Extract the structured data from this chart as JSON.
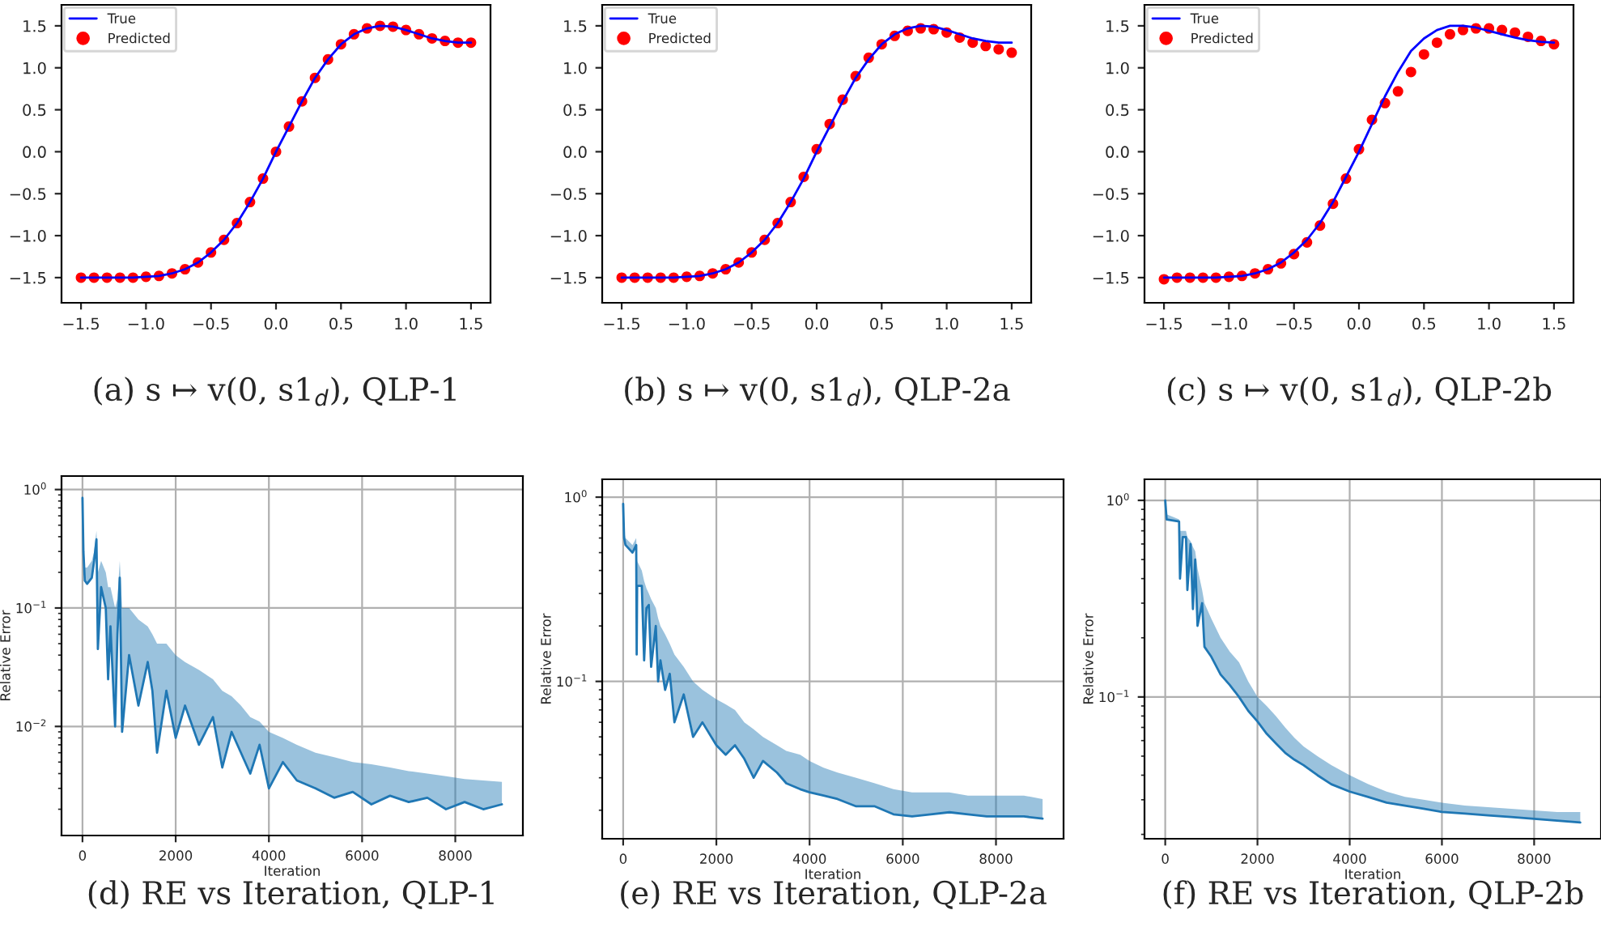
{
  "chart_data": [
    {
      "type": "line",
      "title": "(a) s ↦ v(0, s1$_{d}$), QLP-1",
      "xlim": [
        -1.65,
        1.65
      ],
      "ylim": [
        -1.8,
        1.75
      ],
      "xticks": [
        {
          "value": -1.5,
          "label": "−1.5"
        },
        {
          "value": -1.0,
          "label": "−1.0"
        },
        {
          "value": -0.5,
          "label": "−0.5"
        },
        {
          "value": 0,
          "label": "0.0"
        },
        {
          "value": 0.5,
          "label": "0.5"
        },
        {
          "value": 1,
          "label": "1.0"
        },
        {
          "value": 1.5,
          "label": "1.5"
        }
      ],
      "yticks": [
        {
          "value": -1.5,
          "label": "−1.5"
        },
        {
          "value": -1.0,
          "label": "−1.0"
        },
        {
          "value": -0.5,
          "label": "−0.5"
        },
        {
          "value": 0,
          "label": "0.0"
        },
        {
          "value": 0.5,
          "label": "0.5"
        },
        {
          "value": 1,
          "label": "1.0"
        },
        {
          "value": 1.5,
          "label": "1.5"
        }
      ],
      "grid": false,
      "legend": "top left",
      "x": [
        -1.5,
        -1.4,
        -1.3,
        -1.2,
        -1.1,
        -1.0,
        -0.9,
        -0.8,
        -0.7,
        -0.6,
        -0.5,
        -0.4,
        -0.3,
        -0.2,
        -0.1,
        0.0,
        0.1,
        0.2,
        0.3,
        0.4,
        0.5,
        0.6,
        0.7,
        0.8,
        0.9,
        1.0,
        1.1,
        1.2,
        1.3,
        1.4,
        1.5
      ],
      "series": [
        {
          "name": "True",
          "type": "line",
          "color": "#0000ff",
          "values": [
            -1.5,
            -1.5,
            -1.5,
            -1.5,
            -1.5,
            -1.49,
            -1.48,
            -1.45,
            -1.4,
            -1.32,
            -1.2,
            -1.05,
            -0.85,
            -0.6,
            -0.32,
            0.0,
            0.3,
            0.6,
            0.88,
            1.1,
            1.28,
            1.4,
            1.47,
            1.5,
            1.49,
            1.45,
            1.4,
            1.35,
            1.32,
            1.3,
            1.3
          ]
        },
        {
          "name": "Predicted",
          "type": "scatter",
          "color": "#ff0000",
          "values": [
            -1.5,
            -1.5,
            -1.5,
            -1.5,
            -1.5,
            -1.49,
            -1.48,
            -1.45,
            -1.4,
            -1.32,
            -1.2,
            -1.05,
            -0.85,
            -0.6,
            -0.32,
            0.0,
            0.3,
            0.6,
            0.88,
            1.1,
            1.28,
            1.4,
            1.47,
            1.5,
            1.49,
            1.45,
            1.4,
            1.35,
            1.32,
            1.3,
            1.3
          ]
        }
      ]
    },
    {
      "type": "line",
      "title": "(b) s ↦ v(0, s1$_{d}$), QLP-2a",
      "xlim": [
        -1.65,
        1.65
      ],
      "ylim": [
        -1.8,
        1.75
      ],
      "xticks": [
        {
          "value": -1.5,
          "label": "−1.5"
        },
        {
          "value": -1.0,
          "label": "−1.0"
        },
        {
          "value": -0.5,
          "label": "−0.5"
        },
        {
          "value": 0,
          "label": "0.0"
        },
        {
          "value": 0.5,
          "label": "0.5"
        },
        {
          "value": 1,
          "label": "1.0"
        },
        {
          "value": 1.5,
          "label": "1.5"
        }
      ],
      "yticks": [
        {
          "value": -1.5,
          "label": "−1.5"
        },
        {
          "value": -1.0,
          "label": "−1.0"
        },
        {
          "value": -0.5,
          "label": "−0.5"
        },
        {
          "value": 0,
          "label": "0.0"
        },
        {
          "value": 0.5,
          "label": "0.5"
        },
        {
          "value": 1,
          "label": "1.0"
        },
        {
          "value": 1.5,
          "label": "1.5"
        }
      ],
      "grid": false,
      "legend": "top left",
      "x": [
        -1.5,
        -1.4,
        -1.3,
        -1.2,
        -1.1,
        -1.0,
        -0.9,
        -0.8,
        -0.7,
        -0.6,
        -0.5,
        -0.4,
        -0.3,
        -0.2,
        -0.1,
        0.0,
        0.1,
        0.2,
        0.3,
        0.4,
        0.5,
        0.6,
        0.7,
        0.8,
        0.9,
        1.0,
        1.1,
        1.2,
        1.3,
        1.4,
        1.5
      ],
      "series": [
        {
          "name": "True",
          "type": "line",
          "color": "#0000ff",
          "values": [
            -1.5,
            -1.5,
            -1.5,
            -1.5,
            -1.5,
            -1.49,
            -1.48,
            -1.45,
            -1.4,
            -1.32,
            -1.2,
            -1.05,
            -0.85,
            -0.6,
            -0.32,
            0.0,
            0.3,
            0.6,
            0.88,
            1.1,
            1.28,
            1.4,
            1.47,
            1.5,
            1.49,
            1.45,
            1.4,
            1.35,
            1.32,
            1.3,
            1.3
          ]
        },
        {
          "name": "Predicted",
          "type": "scatter",
          "color": "#ff0000",
          "values": [
            -1.5,
            -1.5,
            -1.5,
            -1.5,
            -1.5,
            -1.49,
            -1.48,
            -1.45,
            -1.4,
            -1.32,
            -1.2,
            -1.05,
            -0.85,
            -0.6,
            -0.3,
            0.03,
            0.33,
            0.62,
            0.9,
            1.12,
            1.28,
            1.38,
            1.44,
            1.47,
            1.46,
            1.42,
            1.36,
            1.3,
            1.26,
            1.22,
            1.18
          ]
        }
      ]
    },
    {
      "type": "line",
      "title": "(c) s ↦ v(0, s1$_{d}$), QLP-2b",
      "xlim": [
        -1.65,
        1.65
      ],
      "ylim": [
        -1.8,
        1.75
      ],
      "xticks": [
        {
          "value": -1.5,
          "label": "−1.5"
        },
        {
          "value": -1.0,
          "label": "−1.0"
        },
        {
          "value": -0.5,
          "label": "−0.5"
        },
        {
          "value": 0,
          "label": "0.0"
        },
        {
          "value": 0.5,
          "label": "0.5"
        },
        {
          "value": 1,
          "label": "1.0"
        },
        {
          "value": 1.5,
          "label": "1.5"
        }
      ],
      "yticks": [
        {
          "value": -1.5,
          "label": "−1.5"
        },
        {
          "value": -1.0,
          "label": "−1.0"
        },
        {
          "value": -0.5,
          "label": "−0.5"
        },
        {
          "value": 0,
          "label": "0.0"
        },
        {
          "value": 0.5,
          "label": "0.5"
        },
        {
          "value": 1,
          "label": "1.0"
        },
        {
          "value": 1.5,
          "label": "1.5"
        }
      ],
      "grid": false,
      "legend": "top left",
      "x": [
        -1.5,
        -1.4,
        -1.3,
        -1.2,
        -1.1,
        -1.0,
        -0.9,
        -0.8,
        -0.7,
        -0.6,
        -0.5,
        -0.4,
        -0.3,
        -0.2,
        -0.1,
        0.0,
        0.1,
        0.2,
        0.3,
        0.4,
        0.5,
        0.6,
        0.7,
        0.8,
        0.9,
        1.0,
        1.1,
        1.2,
        1.3,
        1.4,
        1.5
      ],
      "series": [
        {
          "name": "True",
          "type": "line",
          "color": "#0000ff",
          "values": [
            -1.5,
            -1.5,
            -1.5,
            -1.5,
            -1.5,
            -1.49,
            -1.48,
            -1.45,
            -1.4,
            -1.32,
            -1.2,
            -1.05,
            -0.85,
            -0.6,
            -0.3,
            0.0,
            0.33,
            0.66,
            0.95,
            1.2,
            1.35,
            1.45,
            1.5,
            1.5,
            1.48,
            1.44,
            1.4,
            1.36,
            1.33,
            1.31,
            1.3
          ]
        },
        {
          "name": "Predicted",
          "type": "scatter",
          "color": "#ff0000",
          "values": [
            -1.52,
            -1.5,
            -1.5,
            -1.5,
            -1.5,
            -1.49,
            -1.48,
            -1.45,
            -1.4,
            -1.33,
            -1.22,
            -1.08,
            -0.88,
            -0.62,
            -0.32,
            0.03,
            0.38,
            0.58,
            0.72,
            0.95,
            1.16,
            1.3,
            1.4,
            1.45,
            1.47,
            1.47,
            1.45,
            1.42,
            1.37,
            1.32,
            1.28
          ]
        }
      ]
    },
    {
      "type": "line",
      "title": "(d) RE vs Iteration, QLP-1",
      "xlabel": "Iteration",
      "ylabel": "Relative Error",
      "log": "y",
      "grid": true,
      "xlim": [
        -450,
        9450
      ],
      "ylim": [
        0.0012,
        1.3
      ],
      "xticks": [
        0,
        2000,
        4000,
        6000,
        8000
      ],
      "yticks": [
        {
          "value": 0.01,
          "label": "10$^{−2}$"
        },
        {
          "value": 0.1,
          "label": "10$^{−1}$"
        },
        {
          "value": 1,
          "label": "10$^{0}$"
        }
      ],
      "series": [
        {
          "type": "line",
          "color": "#1f77b4",
          "x": [
            0,
            20,
            50,
            100,
            200,
            250,
            300,
            330,
            400,
            500,
            550,
            600,
            700,
            750,
            800,
            850,
            1000,
            1200,
            1400,
            1500,
            1600,
            1800,
            2000,
            2200,
            2500,
            2800,
            3000,
            3200,
            3400,
            3600,
            3800,
            4000,
            4300,
            4600,
            5000,
            5400,
            5800,
            6200,
            6600,
            7000,
            7400,
            7800,
            8200,
            8600,
            9000
          ],
          "values": [
            0.85,
            0.3,
            0.17,
            0.16,
            0.18,
            0.25,
            0.38,
            0.045,
            0.15,
            0.1,
            0.025,
            0.07,
            0.01,
            0.06,
            0.18,
            0.009,
            0.04,
            0.015,
            0.035,
            0.02,
            0.006,
            0.02,
            0.008,
            0.015,
            0.007,
            0.012,
            0.0045,
            0.009,
            0.006,
            0.004,
            0.007,
            0.003,
            0.005,
            0.0035,
            0.003,
            0.0025,
            0.0028,
            0.0022,
            0.0026,
            0.0023,
            0.0025,
            0.002,
            0.0023,
            0.002,
            0.0022
          ],
          "lower": [
            0.85,
            0.3,
            0.17,
            0.16,
            0.18,
            0.25,
            0.38,
            0.045,
            0.15,
            0.1,
            0.025,
            0.07,
            0.01,
            0.06,
            0.18,
            0.009,
            0.04,
            0.015,
            0.035,
            0.02,
            0.006,
            0.02,
            0.008,
            0.015,
            0.007,
            0.012,
            0.0045,
            0.009,
            0.006,
            0.004,
            0.007,
            0.003,
            0.005,
            0.0035,
            0.003,
            0.0025,
            0.0028,
            0.0022,
            0.0026,
            0.0023,
            0.0025,
            0.002,
            0.0023,
            0.002,
            0.0022
          ],
          "upper": [
            0.9,
            0.35,
            0.22,
            0.22,
            0.25,
            0.3,
            0.45,
            0.2,
            0.25,
            0.2,
            0.15,
            0.15,
            0.1,
            0.12,
            0.25,
            0.1,
            0.1,
            0.08,
            0.07,
            0.06,
            0.05,
            0.05,
            0.04,
            0.035,
            0.03,
            0.025,
            0.02,
            0.018,
            0.015,
            0.012,
            0.011,
            0.009,
            0.008,
            0.007,
            0.006,
            0.0055,
            0.005,
            0.0048,
            0.0045,
            0.0042,
            0.004,
            0.0038,
            0.0036,
            0.0035,
            0.0034
          ]
        }
      ]
    },
    {
      "type": "line",
      "title": "(e) RE vs Iteration, QLP-2a",
      "xlabel": "Iteration",
      "ylabel": "Relative Error",
      "log": "y",
      "grid": true,
      "xlim": [
        -450,
        9450
      ],
      "ylim": [
        0.014,
        1.25
      ],
      "xticks": [
        0,
        2000,
        4000,
        6000,
        8000
      ],
      "yticks": [
        {
          "value": 0.1,
          "label": "10$^{−1}$"
        },
        {
          "value": 1,
          "label": "10$^{0}$"
        }
      ],
      "series": [
        {
          "type": "line",
          "color": "#1f77b4",
          "x": [
            0,
            20,
            50,
            200,
            280,
            290,
            300,
            400,
            450,
            500,
            550,
            600,
            700,
            750,
            800,
            900,
            1000,
            1100,
            1300,
            1500,
            1700,
            2000,
            2200,
            2400,
            2600,
            2800,
            3000,
            3300,
            3500,
            3800,
            4000,
            4300,
            4600,
            5000,
            5400,
            5800,
            6200,
            6600,
            7000,
            7400,
            7800,
            8200,
            8600,
            9000
          ],
          "values": [
            0.92,
            0.6,
            0.55,
            0.5,
            0.55,
            0.14,
            0.33,
            0.33,
            0.13,
            0.25,
            0.26,
            0.12,
            0.2,
            0.1,
            0.13,
            0.09,
            0.11,
            0.06,
            0.085,
            0.05,
            0.06,
            0.045,
            0.04,
            0.045,
            0.038,
            0.03,
            0.037,
            0.032,
            0.028,
            0.026,
            0.025,
            0.024,
            0.023,
            0.021,
            0.021,
            0.019,
            0.0185,
            0.019,
            0.0195,
            0.019,
            0.0185,
            0.0185,
            0.0185,
            0.018
          ],
          "lower": [
            0.92,
            0.6,
            0.55,
            0.5,
            0.55,
            0.14,
            0.33,
            0.33,
            0.13,
            0.25,
            0.26,
            0.12,
            0.2,
            0.1,
            0.13,
            0.09,
            0.11,
            0.06,
            0.085,
            0.05,
            0.06,
            0.045,
            0.04,
            0.045,
            0.038,
            0.03,
            0.037,
            0.032,
            0.028,
            0.026,
            0.025,
            0.024,
            0.023,
            0.021,
            0.021,
            0.019,
            0.0185,
            0.019,
            0.0195,
            0.019,
            0.0185,
            0.0185,
            0.0185,
            0.018
          ],
          "upper": [
            0.95,
            0.65,
            0.6,
            0.55,
            0.6,
            0.5,
            0.45,
            0.4,
            0.35,
            0.32,
            0.3,
            0.28,
            0.25,
            0.22,
            0.2,
            0.18,
            0.16,
            0.14,
            0.12,
            0.1,
            0.09,
            0.08,
            0.075,
            0.07,
            0.06,
            0.055,
            0.05,
            0.045,
            0.042,
            0.04,
            0.037,
            0.034,
            0.032,
            0.03,
            0.028,
            0.026,
            0.025,
            0.025,
            0.025,
            0.024,
            0.024,
            0.024,
            0.024,
            0.023
          ]
        }
      ]
    },
    {
      "type": "line",
      "title": "(f) RE vs Iteration, QLP-2b",
      "xlabel": "Iteration",
      "ylabel": "Relative Error",
      "log": "y",
      "grid": true,
      "xlim": [
        -450,
        9450
      ],
      "ylim": [
        0.019,
        1.28
      ],
      "xticks": [
        0,
        2000,
        4000,
        6000,
        8000
      ],
      "yticks": [
        {
          "value": 0.1,
          "label": "10$^{−1}$"
        },
        {
          "value": 1,
          "label": "10$^{0}$"
        }
      ],
      "series": [
        {
          "type": "line",
          "color": "#1f77b4",
          "x": [
            0,
            30,
            300,
            320,
            380,
            450,
            480,
            550,
            600,
            650,
            700,
            800,
            850,
            1000,
            1200,
            1400,
            1600,
            1800,
            2000,
            2200,
            2400,
            2600,
            2800,
            3000,
            3300,
            3600,
            4000,
            4400,
            4800,
            5200,
            5600,
            6000,
            6500,
            7000,
            7500,
            8000,
            8500,
            9000
          ],
          "values": [
            1.0,
            0.8,
            0.78,
            0.4,
            0.65,
            0.65,
            0.35,
            0.6,
            0.28,
            0.5,
            0.23,
            0.3,
            0.18,
            0.16,
            0.13,
            0.115,
            0.1,
            0.085,
            0.075,
            0.065,
            0.058,
            0.052,
            0.048,
            0.045,
            0.04,
            0.036,
            0.033,
            0.031,
            0.029,
            0.028,
            0.027,
            0.026,
            0.0255,
            0.025,
            0.0245,
            0.024,
            0.0235,
            0.023
          ],
          "lower": [
            1.0,
            0.8,
            0.78,
            0.4,
            0.65,
            0.65,
            0.35,
            0.6,
            0.28,
            0.5,
            0.23,
            0.3,
            0.18,
            0.16,
            0.13,
            0.115,
            0.1,
            0.085,
            0.075,
            0.065,
            0.058,
            0.052,
            0.048,
            0.045,
            0.04,
            0.036,
            0.033,
            0.031,
            0.029,
            0.028,
            0.027,
            0.026,
            0.0255,
            0.025,
            0.0245,
            0.024,
            0.0235,
            0.023
          ],
          "upper": [
            1.0,
            0.85,
            0.8,
            0.7,
            0.7,
            0.7,
            0.65,
            0.62,
            0.58,
            0.55,
            0.45,
            0.35,
            0.3,
            0.25,
            0.2,
            0.17,
            0.15,
            0.12,
            0.1,
            0.09,
            0.08,
            0.07,
            0.062,
            0.056,
            0.05,
            0.045,
            0.04,
            0.036,
            0.033,
            0.031,
            0.03,
            0.029,
            0.028,
            0.0275,
            0.027,
            0.0265,
            0.026,
            0.026
          ]
        }
      ]
    }
  ]
}
